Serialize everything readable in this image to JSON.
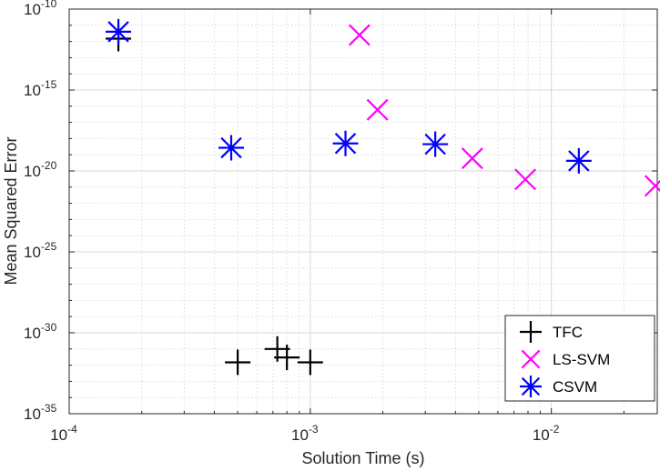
{
  "chart_data": {
    "type": "scatter",
    "title": "",
    "xlabel": "Solution Time (s)",
    "ylabel": "Mean Squared Error",
    "xscale": "log",
    "yscale": "log",
    "xlim": [
      0.0001,
      0.0275
    ],
    "ylim": [
      1e-35,
      1e-10
    ],
    "grid": true,
    "minor_grid": true,
    "legend_position": "bottom-right",
    "x_ticks": [
      {
        "base": "10",
        "exp": "-4"
      },
      {
        "base": "10",
        "exp": "-3"
      },
      {
        "base": "10",
        "exp": "-2"
      }
    ],
    "y_ticks": [
      {
        "base": "10",
        "exp": "-10"
      },
      {
        "base": "10",
        "exp": "-15"
      },
      {
        "base": "10",
        "exp": "-20"
      },
      {
        "base": "10",
        "exp": "-25"
      },
      {
        "base": "10",
        "exp": "-30"
      },
      {
        "base": "10",
        "exp": "-35"
      }
    ],
    "series": [
      {
        "name": "TFC",
        "marker": "plus",
        "color": "#000000",
        "points": [
          {
            "x": 0.00016,
            "y": 1.5e-12
          },
          {
            "x": 0.0005,
            "y": 1.5e-32
          },
          {
            "x": 0.00073,
            "y": 1e-31
          },
          {
            "x": 0.0008,
            "y": 3e-32
          },
          {
            "x": 0.001,
            "y": 1.5e-32
          }
        ]
      },
      {
        "name": "LS-SVM",
        "marker": "x",
        "color": "#ff00ff",
        "points": [
          {
            "x": 0.0016,
            "y": 2.5e-12
          },
          {
            "x": 0.0019,
            "y": 6e-17
          },
          {
            "x": 0.0047,
            "y": 6e-20
          },
          {
            "x": 0.0078,
            "y": 3e-21
          },
          {
            "x": 0.027,
            "y": 1.2e-21
          }
        ]
      },
      {
        "name": "CSVM",
        "marker": "asterisk",
        "color": "#0000ff",
        "points": [
          {
            "x": 0.00016,
            "y": 4e-12
          },
          {
            "x": 0.00047,
            "y": 2.7e-19
          },
          {
            "x": 0.0014,
            "y": 5e-19
          },
          {
            "x": 0.0033,
            "y": 4.5e-19
          },
          {
            "x": 0.013,
            "y": 4.2e-20
          }
        ]
      }
    ]
  }
}
